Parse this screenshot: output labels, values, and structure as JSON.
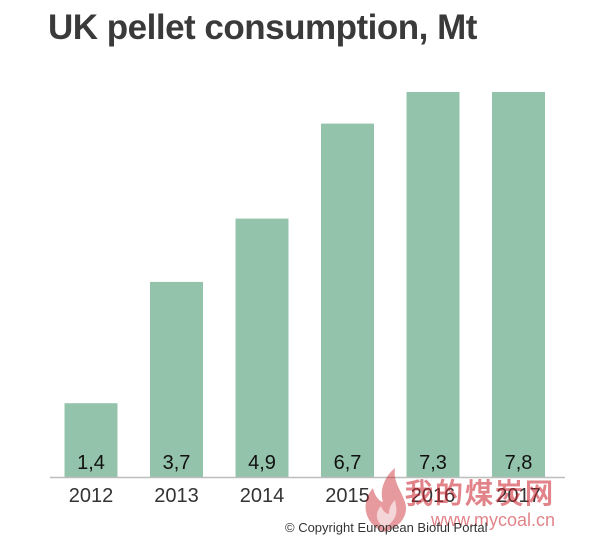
{
  "title": "UK pellet consumption, Mt",
  "copyright": "© Copyright European Bioful Portal",
  "watermark": {
    "text": "我的煤炭网",
    "url": "www.mycoal.cn"
  },
  "colors": {
    "bar": "#93c4ab",
    "axis": "#bdbdbd",
    "title": "#3a3a3a",
    "watermark": "#c81e28"
  },
  "chart_data": {
    "type": "bar",
    "title": "UK pellet consumption, Mt",
    "categories": [
      "2012",
      "2013",
      "2014",
      "2015",
      "2016",
      "2017"
    ],
    "values": [
      1.4,
      3.7,
      4.9,
      6.7,
      7.3,
      7.8
    ],
    "value_labels": [
      "1,4",
      "3,7",
      "4,9",
      "6,7",
      "7,3",
      "7,8"
    ],
    "xlabel": "",
    "ylabel": "",
    "ylim": [
      0,
      7.3
    ],
    "grid": false,
    "legend": "none"
  }
}
